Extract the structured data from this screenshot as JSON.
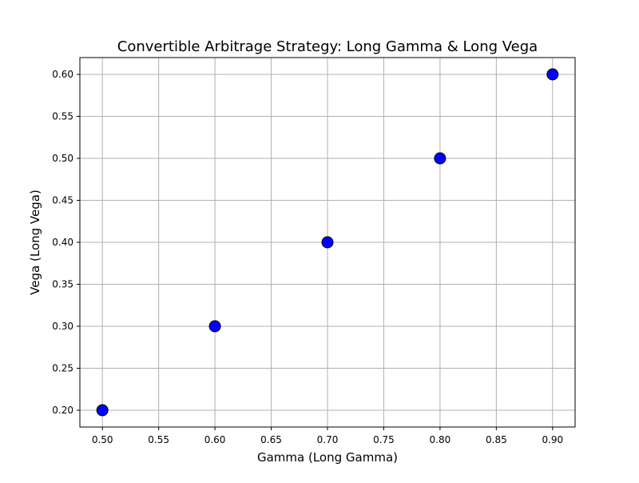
{
  "chart_data": {
    "type": "scatter",
    "title": "Convertible Arbitrage Strategy: Long Gamma & Long Vega",
    "xlabel": "Gamma (Long Gamma)",
    "ylabel": "Vega (Long Vega)",
    "x": [
      0.5,
      0.6,
      0.7,
      0.8,
      0.9
    ],
    "y": [
      0.2,
      0.3,
      0.4,
      0.5,
      0.6
    ],
    "xlim": [
      0.48,
      0.92
    ],
    "ylim": [
      0.18,
      0.62
    ],
    "xticks": [
      "0.50",
      "0.55",
      "0.60",
      "0.65",
      "0.70",
      "0.75",
      "0.80",
      "0.85",
      "0.90"
    ],
    "yticks": [
      "0.20",
      "0.25",
      "0.30",
      "0.35",
      "0.40",
      "0.45",
      "0.50",
      "0.55",
      "0.60"
    ],
    "grid": true,
    "marker_color": "#0000ff",
    "marker_edge_color": "#000000",
    "grid_color": "#b0b0b0"
  }
}
